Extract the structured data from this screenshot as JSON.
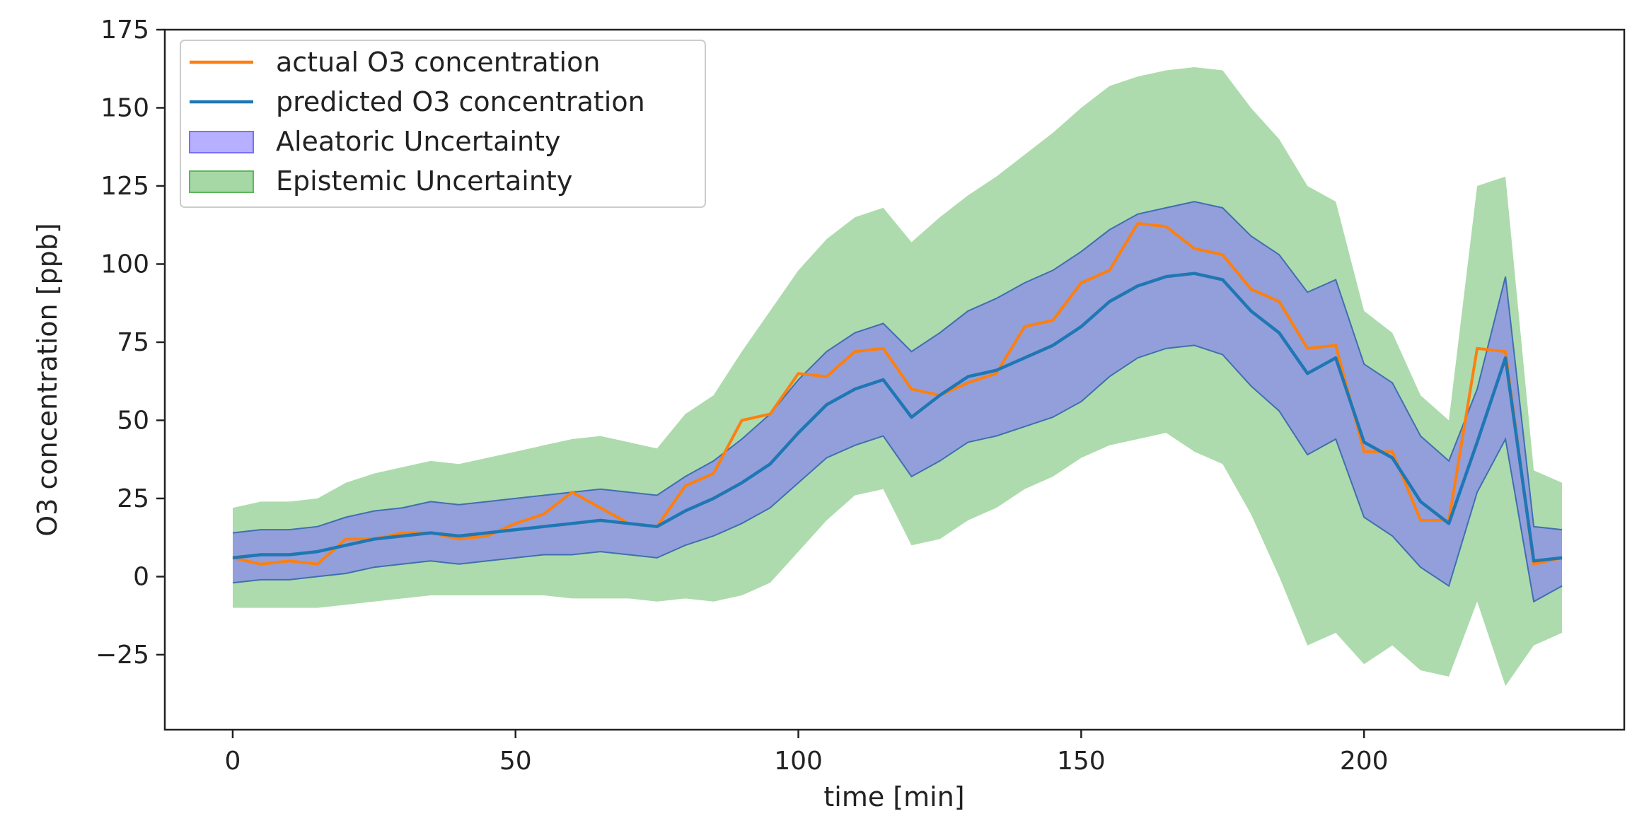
{
  "chart_data": {
    "type": "line",
    "title": "",
    "xlabel": "time [min]",
    "ylabel": "O3 concentration [ppb]",
    "xlim": [
      -12,
      246
    ],
    "ylim": [
      -49,
      175
    ],
    "xticks": [
      0,
      50,
      100,
      150,
      200
    ],
    "xtick_labels": [
      "0",
      "50",
      "100",
      "150",
      "200"
    ],
    "yticks": [
      175,
      150,
      125,
      100,
      75,
      50,
      25,
      0,
      -25
    ],
    "ytick_labels": [
      "175",
      "150",
      "125",
      "100",
      "75",
      "50",
      "25",
      "0",
      "−25"
    ],
    "grid": false,
    "legend_position": "top-left",
    "colors": {
      "actual": "#ff7f0e",
      "predicted": "#1f77b4",
      "aleatoric": "#7b6dff",
      "aleatoric_edge": "#3f6fb0",
      "epistemic": "#5cb85c"
    },
    "legend": [
      {
        "label": "actual O3 concentration",
        "kind": "line",
        "color": "#ff7f0e"
      },
      {
        "label": "predicted O3 concentration",
        "kind": "line",
        "color": "#1f77b4"
      },
      {
        "label": "Aleatoric Uncertainty",
        "kind": "patch",
        "color": "#7b6dff"
      },
      {
        "label": "Epistemic Uncertainty",
        "kind": "patch",
        "color": "#5cb85c"
      }
    ],
    "x": [
      0,
      5,
      10,
      15,
      20,
      25,
      30,
      35,
      40,
      45,
      50,
      55,
      60,
      65,
      70,
      75,
      80,
      85,
      90,
      95,
      100,
      105,
      110,
      115,
      120,
      125,
      130,
      135,
      140,
      145,
      150,
      155,
      160,
      165,
      170,
      175,
      180,
      185,
      190,
      195,
      200,
      205,
      210,
      215,
      220,
      225,
      230,
      235
    ],
    "series": [
      {
        "name": "actual O3 concentration",
        "values": [
          6,
          4,
          5,
          4,
          12,
          12,
          14,
          14,
          12,
          13,
          17,
          20,
          27,
          22,
          17,
          16,
          29,
          33,
          50,
          52,
          65,
          64,
          72,
          73,
          60,
          58,
          62,
          65,
          80,
          82,
          94,
          98,
          113,
          112,
          105,
          103,
          92,
          88,
          73,
          74,
          40,
          40,
          18,
          18,
          73,
          72,
          4,
          6
        ]
      },
      {
        "name": "predicted O3 concentration",
        "values": [
          6,
          7,
          7,
          8,
          10,
          12,
          13,
          14,
          13,
          14,
          15,
          16,
          17,
          18,
          17,
          16,
          21,
          25,
          30,
          36,
          46,
          55,
          60,
          63,
          51,
          58,
          64,
          66,
          70,
          74,
          80,
          88,
          93,
          96,
          97,
          95,
          85,
          78,
          65,
          70,
          43,
          38,
          24,
          17,
          43,
          70,
          5,
          6
        ]
      },
      {
        "name": "Aleatoric Uncertainty upper",
        "values": [
          14,
          15,
          15,
          16,
          19,
          21,
          22,
          24,
          23,
          24,
          25,
          26,
          27,
          28,
          27,
          26,
          32,
          37,
          44,
          52,
          63,
          72,
          78,
          81,
          72,
          78,
          85,
          89,
          94,
          98,
          104,
          111,
          116,
          118,
          120,
          118,
          109,
          103,
          91,
          95,
          68,
          62,
          45,
          37,
          60,
          96,
          16,
          15
        ]
      },
      {
        "name": "Aleatoric Uncertainty lower",
        "values": [
          -2,
          -1,
          -1,
          0,
          1,
          3,
          4,
          5,
          4,
          5,
          6,
          7,
          7,
          8,
          7,
          6,
          10,
          13,
          17,
          22,
          30,
          38,
          42,
          45,
          32,
          37,
          43,
          45,
          48,
          51,
          56,
          64,
          70,
          73,
          74,
          71,
          61,
          53,
          39,
          44,
          19,
          13,
          3,
          -3,
          27,
          44,
          -8,
          -3
        ]
      },
      {
        "name": "Epistemic Uncertainty upper",
        "values": [
          22,
          24,
          24,
          25,
          30,
          33,
          35,
          37,
          36,
          38,
          40,
          42,
          44,
          45,
          43,
          41,
          52,
          58,
          72,
          85,
          98,
          108,
          115,
          118,
          107,
          115,
          122,
          128,
          135,
          142,
          150,
          157,
          160,
          162,
          163,
          162,
          150,
          140,
          125,
          120,
          85,
          78,
          58,
          50,
          125,
          128,
          34,
          30
        ]
      },
      {
        "name": "Epistemic Uncertainty lower",
        "values": [
          -10,
          -10,
          -10,
          -10,
          -9,
          -8,
          -7,
          -6,
          -6,
          -6,
          -6,
          -6,
          -7,
          -7,
          -7,
          -8,
          -7,
          -8,
          -6,
          -2,
          8,
          18,
          26,
          28,
          10,
          12,
          18,
          22,
          28,
          32,
          38,
          42,
          44,
          46,
          40,
          36,
          20,
          0,
          -22,
          -18,
          -28,
          -22,
          -30,
          -32,
          -8,
          -35,
          -22,
          -18
        ]
      }
    ]
  }
}
